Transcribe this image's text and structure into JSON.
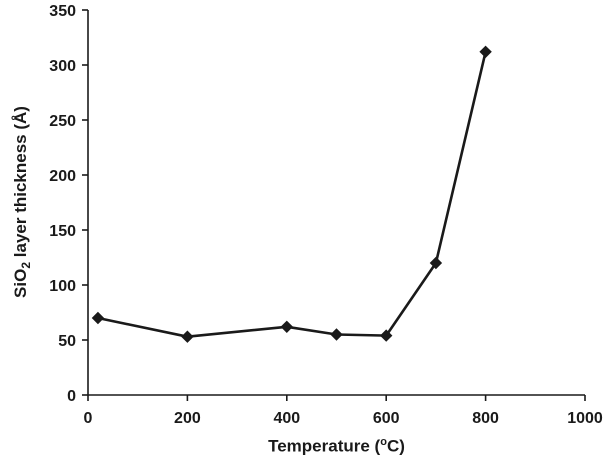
{
  "chart_data": {
    "type": "line",
    "title": "",
    "xlabel": {
      "pre": "Temperature (",
      "sup": "o",
      "post": "C)"
    },
    "ylabel": {
      "pre": "SiO",
      "sub": "2",
      "post": " layer thickness (Å)"
    },
    "x": [
      20,
      200,
      400,
      500,
      600,
      700,
      800
    ],
    "y": [
      70,
      53,
      62,
      55,
      54,
      120,
      312
    ],
    "xlim": [
      0,
      1000
    ],
    "ylim": [
      0,
      350
    ],
    "x_ticks": [
      "0",
      "200",
      "400",
      "600",
      "800",
      "1000"
    ],
    "y_ticks": [
      "0",
      "50",
      "100",
      "150",
      "200",
      "250",
      "300",
      "350"
    ],
    "x_tick_values": [
      0,
      200,
      400,
      600,
      800,
      1000
    ],
    "y_tick_values": [
      0,
      50,
      100,
      150,
      200,
      250,
      300,
      350
    ],
    "grid": false,
    "legend": "none",
    "line_color": "#1a1a1a",
    "axis_color": "#1a1a1a",
    "marker": "diamond"
  }
}
